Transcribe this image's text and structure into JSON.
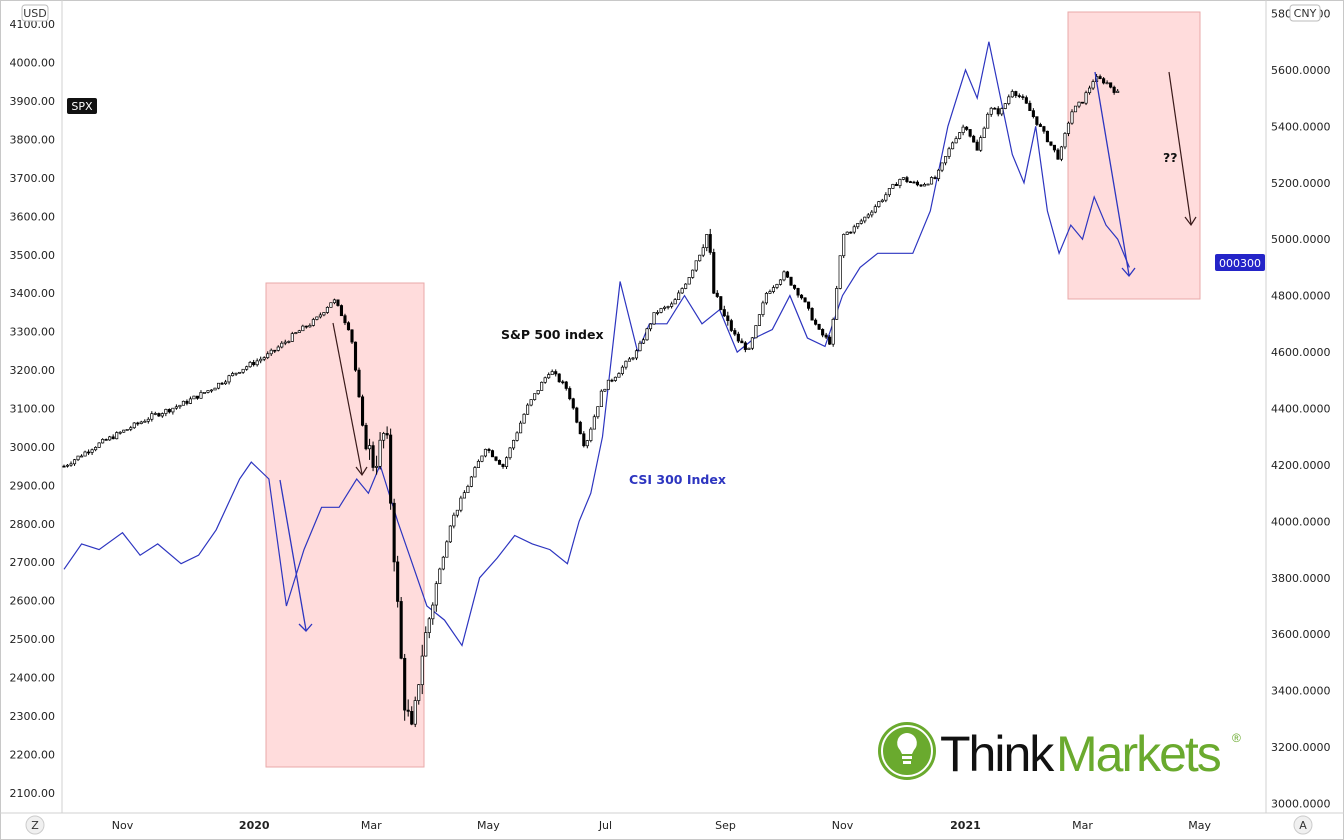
{
  "chart_data": {
    "type": "line",
    "left_axis": {
      "unit": "USD",
      "ticks": [
        "4100.00",
        "4000.00",
        "3900.00",
        "3800.00",
        "3700.00",
        "3600.00",
        "3500.00",
        "3400.00",
        "3300.00",
        "3200.00",
        "3100.00",
        "3000.00",
        "2900.00",
        "2800.00",
        "2700.00",
        "2600.00",
        "2500.00",
        "2400.00",
        "2300.00",
        "2200.00",
        "2100.00"
      ],
      "ylim": [
        2050,
        4150
      ]
    },
    "right_axis": {
      "unit": "CNY",
      "ticks": [
        "5800.0000",
        "5600.0000",
        "5400.0000",
        "5200.0000",
        "5000.0000",
        "4800.0000",
        "4600.0000",
        "4400.0000",
        "4200.0000",
        "4000.0000",
        "3800.0000",
        "3600.0000",
        "3400.0000",
        "3200.0000",
        "3000.0000"
      ],
      "ylim": [
        2970,
        5830
      ]
    },
    "x_ticks": [
      {
        "label": "Nov",
        "t": 1.0,
        "bold": false
      },
      {
        "label": "2020",
        "t": 3.25,
        "bold": true
      },
      {
        "label": "Mar",
        "t": 5.25,
        "bold": false
      },
      {
        "label": "May",
        "t": 7.25,
        "bold": false
      },
      {
        "label": "Jul",
        "t": 9.25,
        "bold": false
      },
      {
        "label": "Sep",
        "t": 11.3,
        "bold": false
      },
      {
        "label": "Nov",
        "t": 13.3,
        "bold": false
      },
      {
        "label": "2021",
        "t": 15.4,
        "bold": true
      },
      {
        "label": "Mar",
        "t": 17.4,
        "bold": false
      },
      {
        "label": "May",
        "t": 19.4,
        "bold": false
      }
    ],
    "xlim": [
      0,
      20.5
    ],
    "series": [
      {
        "name": "SPX",
        "axis": "left",
        "style": "candles",
        "color": "#000000",
        "x": [
          0.0,
          0.5,
          1.0,
          1.5,
          2.0,
          2.5,
          3.0,
          3.5,
          4.0,
          4.3,
          4.6,
          4.9,
          5.1,
          5.3,
          5.5,
          5.65,
          5.8,
          5.95,
          6.1,
          6.3,
          6.6,
          6.9,
          7.2,
          7.5,
          7.9,
          8.3,
          8.6,
          8.9,
          9.2,
          9.5,
          9.8,
          10.1,
          10.4,
          10.7,
          11.0,
          11.1,
          11.3,
          11.5,
          11.7,
          12.0,
          12.3,
          12.6,
          12.9,
          13.1,
          13.3,
          13.5,
          13.7,
          14.0,
          14.3,
          14.6,
          14.9,
          15.2,
          15.4,
          15.6,
          15.8,
          16.0,
          16.2,
          16.4,
          16.6,
          16.8,
          17.0,
          17.2,
          17.4,
          17.6,
          17.8,
          18.0
        ],
        "values": [
          2950,
          3000,
          3040,
          3080,
          3110,
          3150,
          3200,
          3240,
          3300,
          3330,
          3385,
          3300,
          3050,
          2950,
          3050,
          2700,
          2350,
          2250,
          2450,
          2600,
          2800,
          2900,
          3000,
          2950,
          3100,
          3200,
          3150,
          3000,
          3150,
          3200,
          3250,
          3350,
          3370,
          3450,
          3560,
          3400,
          3330,
          3280,
          3250,
          3400,
          3450,
          3390,
          3300,
          3270,
          3550,
          3570,
          3600,
          3650,
          3700,
          3680,
          3700,
          3800,
          3840,
          3770,
          3880,
          3870,
          3930,
          3900,
          3850,
          3800,
          3750,
          3870,
          3900,
          3960,
          3950,
          3920
        ]
      },
      {
        "name": "000300",
        "axis": "right",
        "style": "line",
        "color": "#2d35c0",
        "x": [
          0.0,
          0.3,
          0.6,
          1.0,
          1.3,
          1.6,
          2.0,
          2.3,
          2.6,
          3.0,
          3.2,
          3.5,
          3.8,
          4.1,
          4.4,
          4.7,
          5.0,
          5.2,
          5.4,
          5.7,
          5.9,
          6.2,
          6.5,
          6.8,
          7.1,
          7.4,
          7.7,
          8.0,
          8.3,
          8.6,
          8.8,
          9.0,
          9.2,
          9.5,
          9.8,
          10.0,
          10.3,
          10.6,
          10.9,
          11.2,
          11.5,
          11.8,
          12.1,
          12.4,
          12.7,
          13.0,
          13.3,
          13.6,
          13.9,
          14.2,
          14.5,
          14.8,
          15.1,
          15.4,
          15.6,
          15.8,
          16.0,
          16.2,
          16.4,
          16.6,
          16.8,
          17.0,
          17.2,
          17.4,
          17.6,
          17.8,
          18.0,
          18.2
        ],
        "values": [
          3830,
          3920,
          3900,
          3960,
          3880,
          3920,
          3850,
          3880,
          3970,
          4150,
          4210,
          4150,
          3700,
          3900,
          4050,
          4050,
          4150,
          4100,
          4200,
          4000,
          3880,
          3700,
          3650,
          3560,
          3800,
          3870,
          3950,
          3920,
          3900,
          3850,
          4000,
          4100,
          4300,
          4850,
          4600,
          4700,
          4700,
          4800,
          4700,
          4750,
          4600,
          4650,
          4680,
          4800,
          4650,
          4620,
          4800,
          4900,
          4950,
          4950,
          4950,
          5100,
          5400,
          5600,
          5500,
          5700,
          5500,
          5300,
          5200,
          5400,
          5100,
          4950,
          5050,
          5000,
          5150,
          5050,
          5000,
          4900
        ]
      }
    ],
    "annotations": {
      "spx_label": "S&P 500 index",
      "csi_label": "CSI 300 Index",
      "question": "??"
    },
    "badges": {
      "spx": "SPX",
      "csi": "000300"
    },
    "bottom_left": "Z",
    "bottom_right": "A"
  },
  "logo": {
    "text_think": "Think",
    "text_markets": "Markets",
    "reg": "®",
    "colors": {
      "think": "#111111",
      "markets": "#6aaa2e"
    }
  }
}
